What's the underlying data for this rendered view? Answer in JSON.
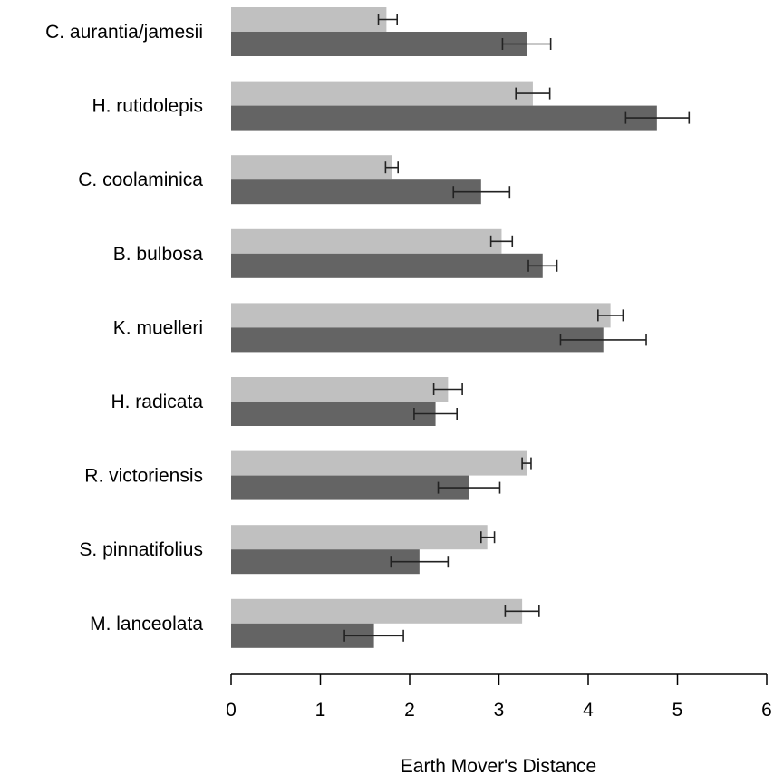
{
  "chart_data": {
    "type": "bar",
    "orientation": "horizontal",
    "title": "",
    "xlabel": "Earth Mover's Distance",
    "ylabel": "",
    "xlim": [
      0,
      6
    ],
    "xticks": [
      "0",
      "1",
      "2",
      "3",
      "4",
      "5",
      "6"
    ],
    "grid": false,
    "legend": "none",
    "categories": [
      "C. aurantia/jamesii",
      "H. rutidolepis",
      "C. coolaminica",
      "B. bulbosa",
      "K. muelleri",
      "H. radicata",
      "R. victoriensis",
      "S. pinnatifolius",
      "M. lanceolata"
    ],
    "series": [
      {
        "color": "#c0c0c0",
        "values": [
          1.74,
          3.38,
          1.8,
          3.03,
          4.25,
          2.43,
          3.31,
          2.87,
          3.26
        ],
        "error_low": [
          1.65,
          3.19,
          1.73,
          2.91,
          4.11,
          2.27,
          3.26,
          2.8,
          3.07
        ],
        "error_high": [
          1.86,
          3.57,
          1.87,
          3.15,
          4.39,
          2.59,
          3.36,
          2.95,
          3.45
        ]
      },
      {
        "color": "#646464",
        "values": [
          3.31,
          4.77,
          2.8,
          3.49,
          4.17,
          2.29,
          2.66,
          2.11,
          1.6
        ],
        "error_low": [
          3.04,
          4.42,
          2.49,
          3.33,
          3.69,
          2.05,
          2.32,
          1.79,
          1.27
        ],
        "error_high": [
          3.58,
          5.13,
          3.12,
          3.65,
          4.65,
          2.53,
          3.01,
          2.43,
          1.93
        ]
      }
    ]
  }
}
